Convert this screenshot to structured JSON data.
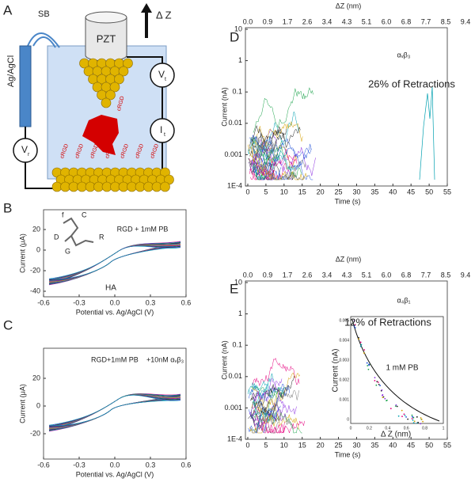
{
  "panel_a": {
    "label": "A",
    "sb": "SB",
    "electrode": "Ag/AgCl",
    "pzt": "PZT",
    "dz": "Δ Z",
    "vt": "V",
    "vt_sub": "t",
    "it": "I",
    "it_sub": "t",
    "vr": "V",
    "vr_sub": "r",
    "crgd": "cRGD"
  },
  "panel_b": {
    "label": "B",
    "legend": "RGD + 1mM PB",
    "annotation": "HA",
    "atoms": [
      "f",
      "C",
      "D",
      "R",
      "G"
    ],
    "x_label": "Potential vs. Ag/AgCl (V)",
    "y_label": "Current (μA)",
    "xticks": [
      "-0.6",
      "-0.3",
      "0.0",
      "0.3",
      "0.6"
    ],
    "yticks": [
      "20",
      "0",
      "-20",
      "-40"
    ]
  },
  "panel_c": {
    "label": "C",
    "legend": "RGD+1mM PB",
    "legend2": "+10nM αᵥβ₃",
    "x_label": "Potential vs. Ag/AgCl (V)",
    "y_label": "Current (μA)",
    "xticks": [
      "-0.6",
      "-0.3",
      "0.0",
      "0.3",
      "0.6"
    ],
    "yticks": [
      "20",
      "0",
      "-20"
    ]
  },
  "panel_d": {
    "label": "D",
    "integrin": "αᵥβ₃",
    "percent": "26% of Retractions",
    "x_label": "Time (s)",
    "y_label": "Current (nA)",
    "top_label": "ΔZ (nm)",
    "xticks": [
      "0",
      "5",
      "10",
      "15",
      "20",
      "25",
      "30",
      "35",
      "40",
      "45",
      "50",
      "55"
    ],
    "top_ticks": [
      "0.0",
      "0.9",
      "1.7",
      "2.6",
      "3.4",
      "4.3",
      "5.1",
      "6.0",
      "6.8",
      "7.7",
      "8.5",
      "9.4"
    ],
    "yticks": [
      "10",
      "1",
      "0.1",
      "0.01",
      "0.001",
      "1E-4"
    ]
  },
  "panel_e": {
    "label": "E",
    "integrin": "α₄β₁",
    "percent": "12% of Retractions",
    "x_label": "Time (s)",
    "y_label": "Current (nA)",
    "top_label": "ΔZ (nm)",
    "xticks": [
      "0",
      "5",
      "10",
      "15",
      "20",
      "25",
      "30",
      "35",
      "40",
      "45",
      "50",
      "55"
    ],
    "top_ticks": [
      "0.0",
      "0.9",
      "1.7",
      "2.6",
      "3.4",
      "4.3",
      "5.1",
      "6.0",
      "6.8",
      "7.7",
      "8.5",
      "9.4"
    ],
    "yticks": [
      "10",
      "1",
      "0.1",
      "0.01",
      "0.001",
      "1E-4"
    ],
    "inset": {
      "legend": "1 mM PB",
      "x_label": "Δ Z (nm)",
      "y_label": "Current (nA)",
      "xticks": [
        "0",
        "0.2",
        "0.4",
        "0.6",
        "0.8",
        "1"
      ],
      "yticks": [
        "0",
        "0.001",
        "0.002",
        "0.003",
        "0.004",
        "0.005"
      ]
    }
  }
}
